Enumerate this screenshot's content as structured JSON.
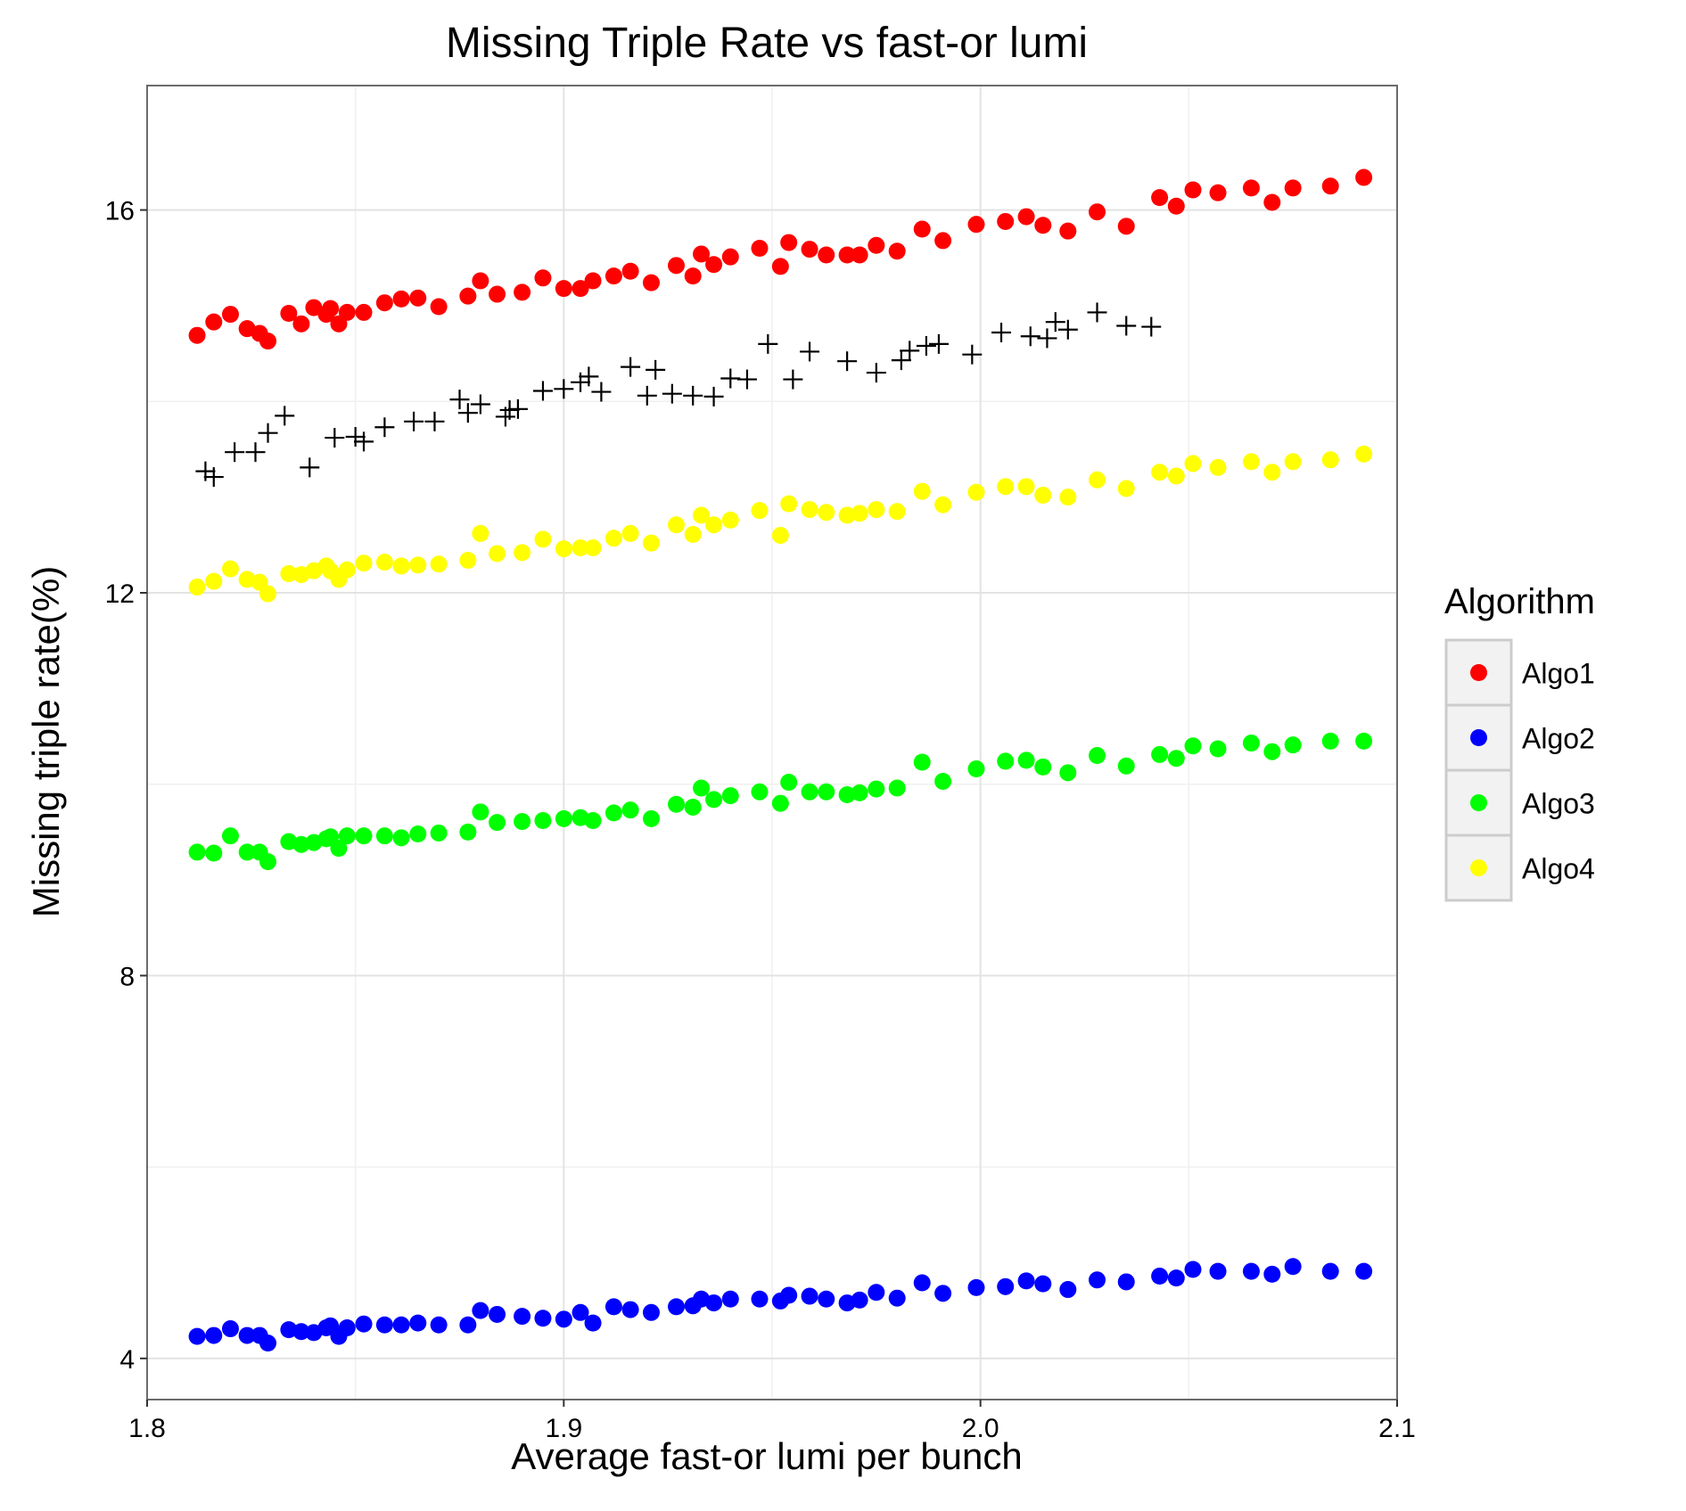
{
  "chart_data": {
    "type": "scatter",
    "title": "Missing Triple Rate vs fast-or lumi",
    "xlabel": "Average fast-or lumi per bunch",
    "ylabel": "Missing triple rate(%)",
    "xlim": [
      1.8,
      2.1
    ],
    "ylim": [
      3.57,
      17.3
    ],
    "x_ticks": [
      "1.8",
      "1.9",
      "2.0",
      "2.1"
    ],
    "y_ticks": [
      "4",
      "8",
      "12",
      "16"
    ],
    "grid": true,
    "legend_position": "right",
    "legend_title": "Algorithm",
    "x": [
      1.812,
      1.816,
      1.82,
      1.824,
      1.827,
      1.829,
      1.834,
      1.837,
      1.84,
      1.843,
      1.844,
      1.846,
      1.848,
      1.852,
      1.857,
      1.861,
      1.865,
      1.87,
      1.877,
      1.88,
      1.884,
      1.89,
      1.895,
      1.9,
      1.904,
      1.907,
      1.912,
      1.916,
      1.921,
      1.927,
      1.931,
      1.933,
      1.936,
      1.94,
      1.947,
      1.952,
      1.954,
      1.959,
      1.963,
      1.968,
      1.971,
      1.975,
      1.98,
      1.986,
      1.991,
      1.999,
      2.006,
      2.011,
      2.015,
      2.021,
      2.028,
      2.035,
      2.043,
      2.047,
      2.051,
      2.057,
      2.065,
      2.07,
      2.075,
      2.084,
      2.092
    ],
    "series": [
      {
        "name": "Algo1",
        "color": "#ff0000",
        "marker": "circle",
        "y": [
          14.69,
          14.83,
          14.91,
          14.76,
          14.71,
          14.63,
          14.92,
          14.81,
          14.98,
          14.91,
          14.97,
          14.81,
          14.93,
          14.93,
          15.03,
          15.07,
          15.08,
          14.99,
          15.1,
          15.26,
          15.12,
          15.14,
          15.29,
          15.18,
          15.18,
          15.26,
          15.31,
          15.36,
          15.24,
          15.42,
          15.31,
          15.54,
          15.43,
          15.51,
          15.6,
          15.41,
          15.66,
          15.59,
          15.53,
          15.53,
          15.53,
          15.63,
          15.57,
          15.8,
          15.68,
          15.85,
          15.88,
          15.93,
          15.84,
          15.78,
          15.98,
          15.83,
          16.13,
          16.04,
          16.21,
          16.18,
          16.23,
          16.08,
          16.23,
          16.25,
          16.34
        ]
      },
      {
        "name": "Algo2",
        "color": "#0000ff",
        "marker": "circle",
        "y": [
          4.23,
          4.24,
          4.31,
          4.24,
          4.24,
          4.16,
          4.3,
          4.28,
          4.27,
          4.32,
          4.34,
          4.23,
          4.32,
          4.36,
          4.35,
          4.35,
          4.37,
          4.35,
          4.35,
          4.5,
          4.46,
          4.44,
          4.42,
          4.41,
          4.48,
          4.37,
          4.54,
          4.51,
          4.48,
          4.54,
          4.55,
          4.62,
          4.58,
          4.62,
          4.62,
          4.6,
          4.66,
          4.65,
          4.62,
          4.58,
          4.61,
          4.69,
          4.63,
          4.79,
          4.68,
          4.74,
          4.75,
          4.81,
          4.78,
          4.72,
          4.82,
          4.8,
          4.86,
          4.84,
          4.93,
          4.91,
          4.91,
          4.88,
          4.96,
          4.91,
          4.91
        ]
      },
      {
        "name": "Algo3",
        "color": "#00ff00",
        "marker": "circle",
        "y": [
          9.29,
          9.28,
          9.46,
          9.29,
          9.29,
          9.19,
          9.4,
          9.37,
          9.39,
          9.43,
          9.45,
          9.33,
          9.46,
          9.46,
          9.46,
          9.44,
          9.48,
          9.49,
          9.5,
          9.71,
          9.6,
          9.61,
          9.62,
          9.64,
          9.65,
          9.62,
          9.7,
          9.73,
          9.64,
          9.79,
          9.76,
          9.96,
          9.84,
          9.88,
          9.92,
          9.8,
          10.02,
          9.92,
          9.92,
          9.89,
          9.91,
          9.95,
          9.96,
          10.23,
          10.03,
          10.16,
          10.24,
          10.25,
          10.18,
          10.12,
          10.3,
          10.19,
          10.31,
          10.27,
          10.4,
          10.37,
          10.43,
          10.34,
          10.41,
          10.45,
          10.45
        ]
      },
      {
        "name": "Algo4",
        "color": "#ffff00",
        "marker": "circle",
        "y": [
          12.06,
          12.12,
          12.25,
          12.14,
          12.11,
          11.99,
          12.2,
          12.19,
          12.23,
          12.28,
          12.23,
          12.14,
          12.24,
          12.31,
          12.32,
          12.28,
          12.29,
          12.3,
          12.34,
          12.62,
          12.41,
          12.42,
          12.56,
          12.46,
          12.47,
          12.47,
          12.57,
          12.62,
          12.52,
          12.71,
          12.61,
          12.81,
          12.71,
          12.76,
          12.86,
          12.6,
          12.93,
          12.87,
          12.84,
          12.81,
          12.83,
          12.87,
          12.85,
          13.06,
          12.92,
          13.05,
          13.11,
          13.11,
          13.02,
          13.0,
          13.18,
          13.09,
          13.26,
          13.22,
          13.35,
          13.31,
          13.37,
          13.26,
          13.37,
          13.39,
          13.45
        ]
      },
      {
        "name": "",
        "color": "#000000",
        "marker": "plus",
        "x": [
          1.814,
          1.816,
          1.821,
          1.826,
          1.829,
          1.833,
          1.839,
          1.845,
          1.85,
          1.852,
          1.857,
          1.864,
          1.869,
          1.875,
          1.877,
          1.88,
          1.886,
          1.887,
          1.889,
          1.895,
          1.9,
          1.904,
          1.906,
          1.909,
          1.916,
          1.92,
          1.922,
          1.926,
          1.931,
          1.936,
          1.94,
          1.944,
          1.949,
          1.955,
          1.959,
          1.968,
          1.975,
          1.981,
          1.983,
          1.987,
          1.99,
          1.998,
          2.005,
          2.012,
          2.016,
          2.018,
          2.021,
          2.028,
          2.035,
          2.041
        ],
        "y": [
          13.27,
          13.21,
          13.47,
          13.47,
          13.67,
          13.85,
          13.31,
          13.62,
          13.63,
          13.58,
          13.73,
          13.79,
          13.79,
          14.02,
          13.88,
          13.97,
          13.84,
          13.91,
          13.92,
          14.11,
          14.13,
          14.2,
          14.26,
          14.1,
          14.36,
          14.06,
          14.33,
          14.08,
          14.06,
          14.05,
          14.24,
          14.23,
          14.6,
          14.23,
          14.52,
          14.42,
          14.3,
          14.43,
          14.53,
          14.58,
          14.6,
          14.49,
          14.72,
          14.68,
          14.66,
          14.83,
          14.75,
          14.93,
          14.79,
          14.78
        ]
      }
    ]
  }
}
